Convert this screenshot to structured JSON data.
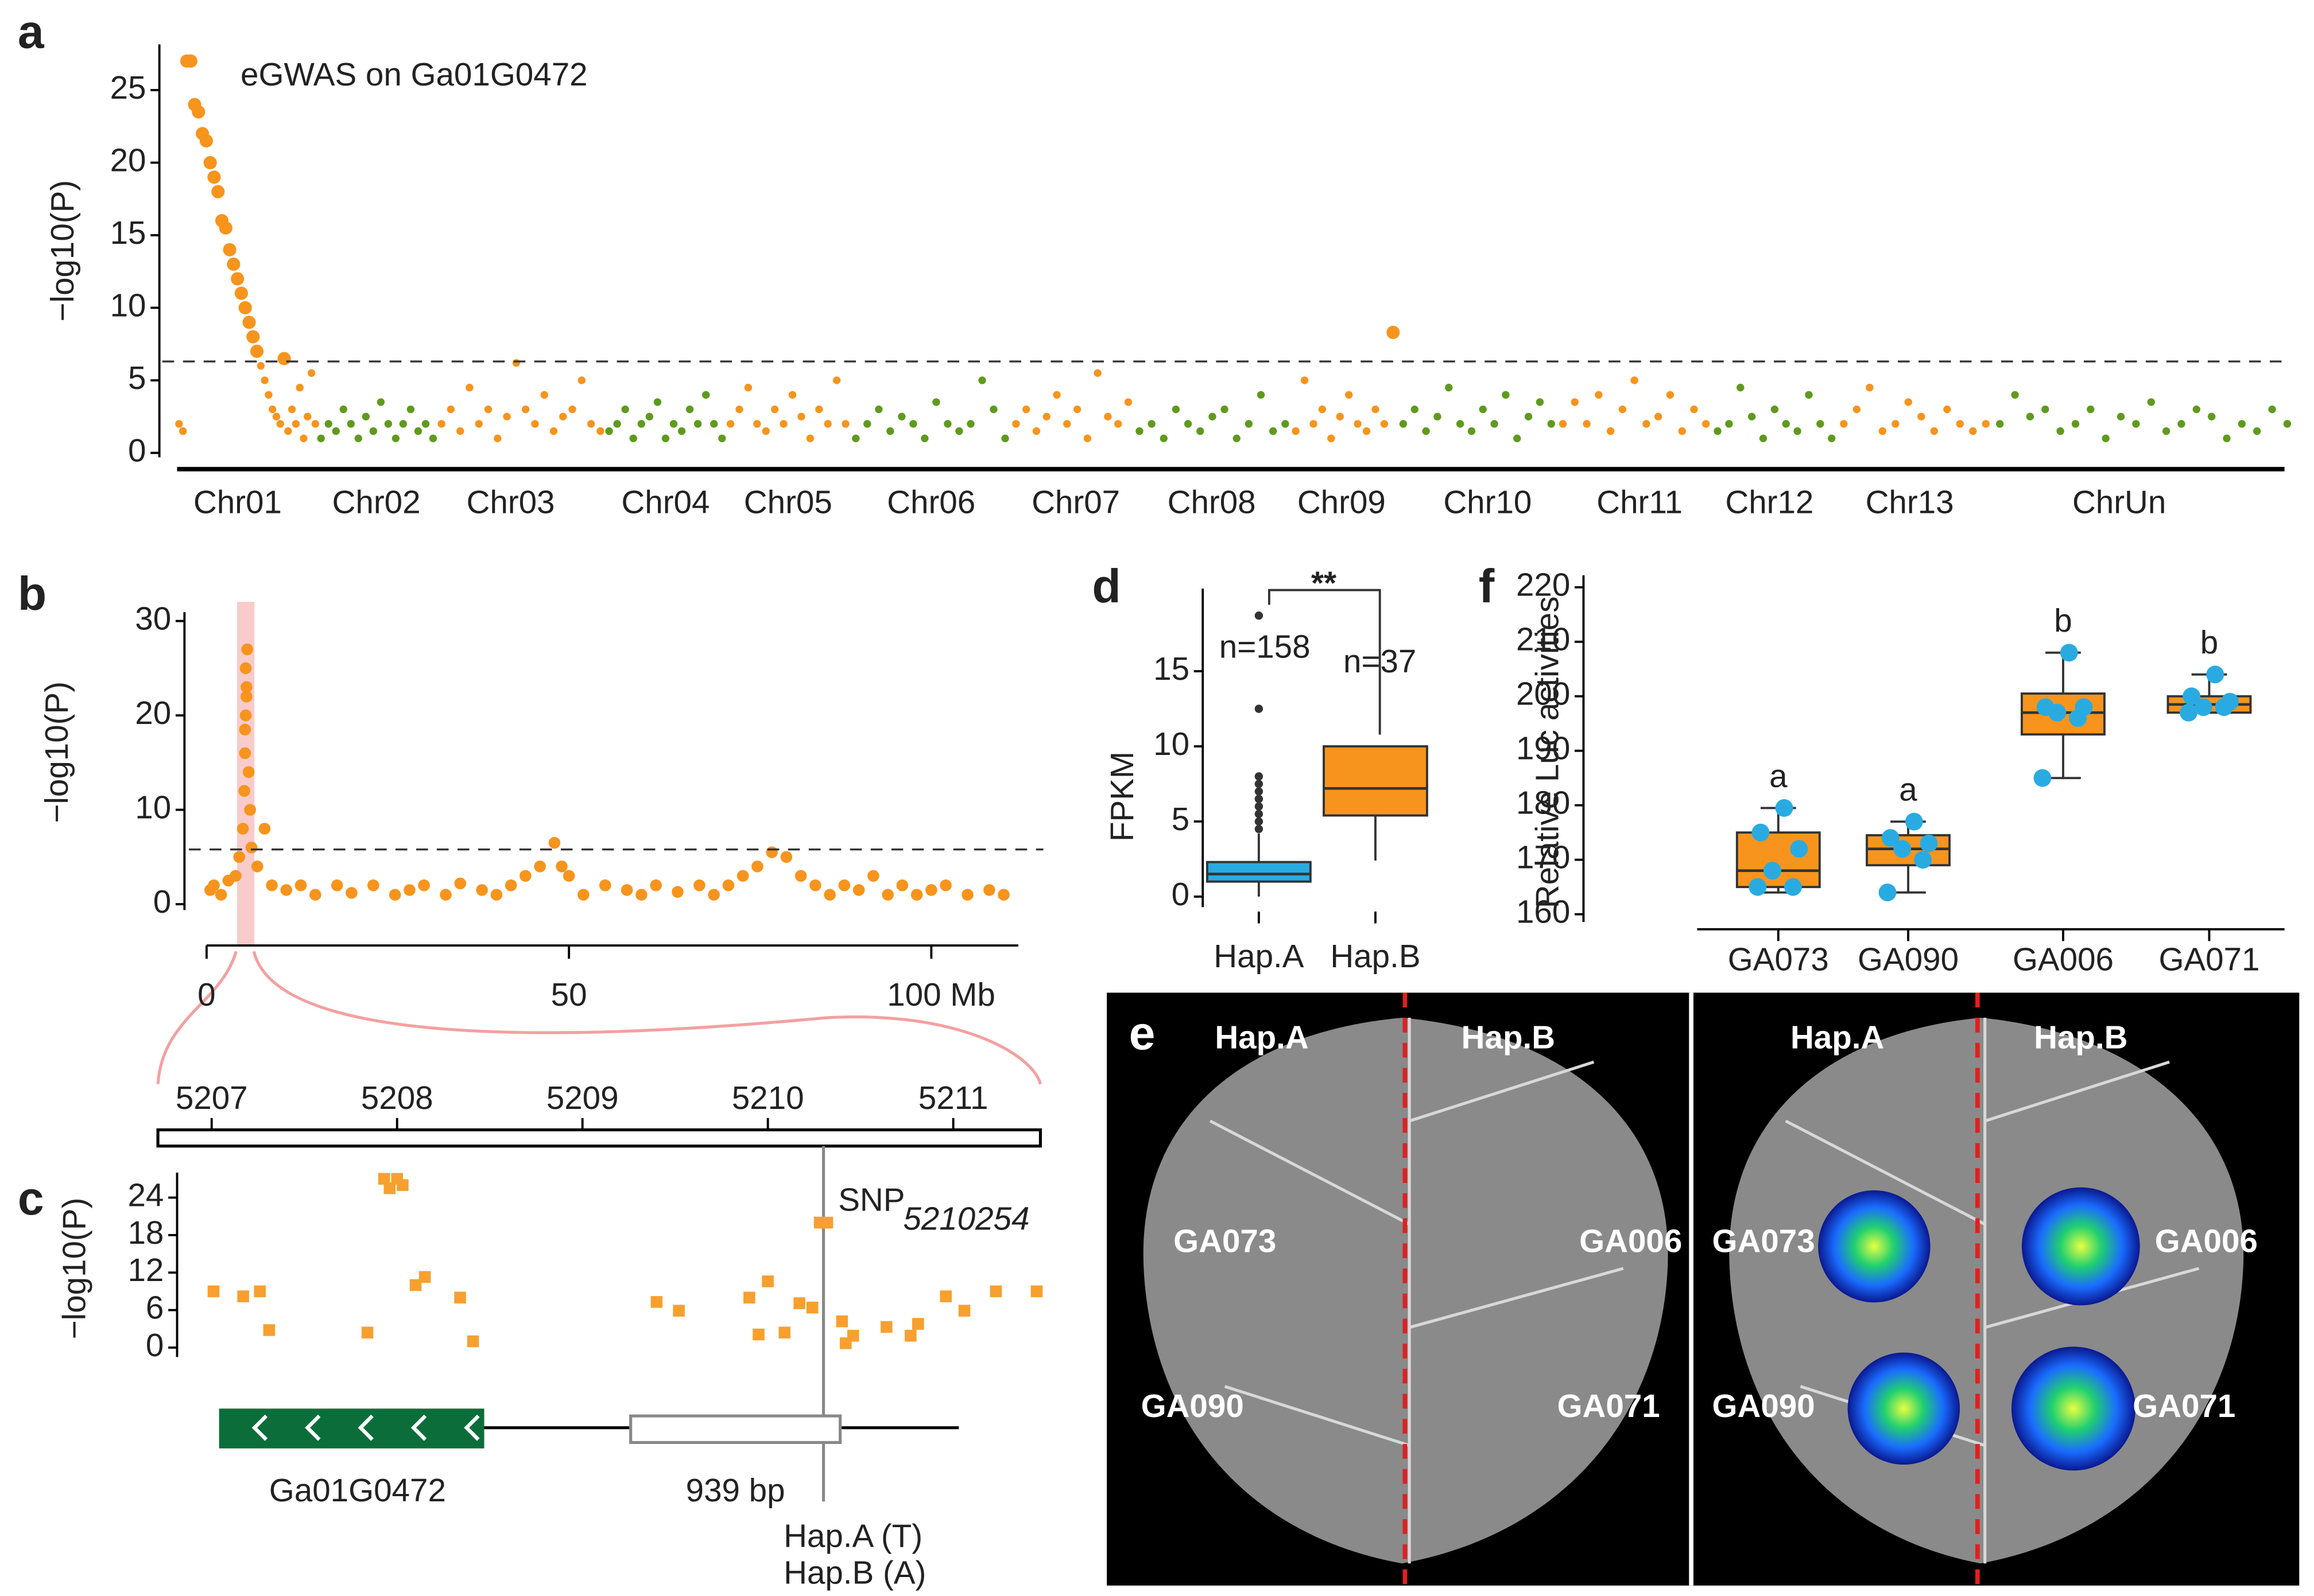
{
  "chart_data": [
    {
      "type": "manhattan",
      "panel_label": "a",
      "title": "eGWAS on Ga01G0472",
      "ylabel": "−log10(P)",
      "ylim": [
        0,
        28
      ],
      "yticks": [
        0,
        5,
        10,
        15,
        20,
        25
      ],
      "threshold": 6.3,
      "series": [
        {
          "name": "Chr01",
          "color": "#f7941d",
          "values": [
            2,
            1.5,
            27,
            27,
            24,
            23.5,
            22,
            21.5,
            20,
            19,
            18,
            16,
            15.5,
            14,
            13,
            12,
            11,
            10,
            9,
            8,
            7,
            6,
            5,
            4,
            3,
            2.5,
            2,
            6.5,
            1.5,
            3,
            2,
            4.5,
            1,
            2.5,
            5.5,
            2
          ]
        },
        {
          "name": "Chr02",
          "color": "#5f9a1e",
          "values": [
            1,
            2,
            1.5,
            3,
            2,
            1,
            2.5,
            1.5,
            3.5,
            2,
            1,
            2,
            3,
            1.5,
            2,
            1
          ]
        },
        {
          "name": "Chr03",
          "color": "#f7941d",
          "values": [
            2,
            3,
            1.5,
            4.5,
            2,
            3,
            1,
            2.5,
            6.2,
            3,
            2,
            4,
            1.5,
            2.5,
            3,
            5,
            2,
            1.5
          ]
        },
        {
          "name": "Chr04",
          "color": "#5f9a1e",
          "values": [
            1.5,
            2,
            3,
            1,
            2,
            2.5,
            3.5,
            1,
            2,
            1.5,
            3,
            2,
            4,
            2,
            1
          ]
        },
        {
          "name": "Chr05",
          "color": "#f7941d",
          "values": [
            2,
            3,
            4.5,
            2,
            1.5,
            3,
            2,
            4,
            2.5,
            1,
            3,
            2,
            5,
            2
          ]
        },
        {
          "name": "Chr06",
          "color": "#5f9a1e",
          "values": [
            1,
            2,
            3,
            1.5,
            2.5,
            2,
            1,
            3.5,
            2,
            1.5,
            2,
            5,
            3,
            1
          ]
        },
        {
          "name": "Chr07",
          "color": "#f7941d",
          "values": [
            2,
            3,
            1.5,
            2.5,
            4,
            2,
            3,
            1,
            5.5,
            2.5,
            2,
            3.5
          ]
        },
        {
          "name": "Chr08",
          "color": "#5f9a1e",
          "values": [
            1.5,
            2,
            1,
            3,
            2,
            1.5,
            2.5,
            3,
            1,
            2,
            4,
            1.5,
            2
          ]
        },
        {
          "name": "Chr09",
          "color": "#f7941d",
          "values": [
            1.5,
            5,
            2,
            3,
            1,
            2.5,
            4,
            2,
            1.5,
            3,
            2,
            8.3
          ]
        },
        {
          "name": "Chr10",
          "color": "#5f9a1e",
          "values": [
            2,
            3,
            1.5,
            2.5,
            4.5,
            2,
            1.5,
            3,
            2,
            4,
            1,
            2.5,
            3.5,
            2
          ]
        },
        {
          "name": "Chr11",
          "color": "#f7941d",
          "values": [
            2,
            3.5,
            2,
            4,
            1.5,
            3,
            5,
            2,
            2.5,
            4,
            1.5,
            3,
            2
          ]
        },
        {
          "name": "Chr12",
          "color": "#5f9a1e",
          "values": [
            1.5,
            2,
            4.5,
            2.5,
            1,
            3,
            2,
            1.5,
            4,
            2,
            1
          ]
        },
        {
          "name": "Chr13",
          "color": "#f7941d",
          "values": [
            2,
            3,
            4.5,
            1.5,
            2,
            3.5,
            2.5,
            1.5,
            3,
            2,
            1.5,
            2
          ]
        },
        {
          "name": "ChrUn",
          "color": "#5f9a1e",
          "values": [
            2,
            4,
            2.5,
            3,
            1.5,
            2,
            3,
            1,
            2.5,
            2,
            3.5,
            1.5,
            2,
            3,
            2.5,
            1,
            2,
            1.5,
            3,
            2
          ]
        }
      ]
    },
    {
      "type": "scatter",
      "panel_label": "b",
      "ylabel": "−log10(P)",
      "color": "#f7941d",
      "xlim": [
        0,
        112
      ],
      "xticks": [
        0,
        50,
        {
          "value": 100,
          "label": "100 Mb"
        }
      ],
      "ylim": [
        0,
        30
      ],
      "yticks": [
        0,
        10,
        20,
        30
      ],
      "threshold": 5.8,
      "highlight_range": [
        4.2,
        6.6
      ],
      "x": [
        0.5,
        1,
        2,
        3,
        4,
        4.5,
        5,
        5.2,
        5.3,
        5.4,
        5.5,
        5.6,
        5.8,
        6,
        6.2,
        5.4,
        5.5,
        5.3,
        7,
        8,
        9,
        11,
        13,
        15,
        18,
        20,
        23,
        26,
        28,
        30,
        33,
        35,
        38,
        40,
        42,
        44,
        46,
        48,
        49,
        50,
        52,
        55,
        58,
        60,
        62,
        65,
        68,
        70,
        72,
        74,
        76,
        78,
        80,
        82,
        84,
        86,
        88,
        90,
        92,
        94,
        96,
        98,
        100,
        102,
        105,
        108,
        110
      ],
      "y": [
        1.5,
        2,
        1,
        2.5,
        3,
        5,
        8,
        12,
        16,
        20,
        23,
        27,
        14,
        10,
        6,
        25,
        22,
        18.5,
        4,
        8,
        2,
        1.5,
        2,
        1,
        2,
        1.2,
        2,
        1,
        1.5,
        2,
        1,
        2.2,
        1.5,
        1,
        2,
        3,
        4,
        6.5,
        4,
        3,
        1,
        2,
        1.5,
        1,
        2,
        1.3,
        2,
        1,
        2,
        3,
        4,
        5.5,
        5,
        3,
        2,
        1,
        2,
        1.5,
        3,
        1,
        2,
        1,
        1.5,
        2,
        1,
        1.5,
        1
      ]
    },
    {
      "type": "scatter",
      "panel_label": "c",
      "ylabel": "−log10(P)",
      "color": "#f7a030",
      "xlim": [
        5206.71,
        5211.47
      ],
      "xticks": [
        5207,
        5208,
        5209,
        5210,
        5211
      ],
      "ylim": [
        -1.5,
        28
      ],
      "yticks": [
        0,
        6,
        12,
        18,
        24
      ],
      "x": [
        5207.01,
        5207.17,
        5207.26,
        5207.31,
        5207.84,
        5207.93,
        5208.0,
        5208.03,
        5207.96,
        5208.1,
        5208.15,
        5208.34,
        5208.41,
        5209.4,
        5209.52,
        5209.9,
        5209.95,
        5210.0,
        5210.09,
        5210.17,
        5210.24,
        5210.28,
        5210.32,
        5210.4,
        5210.42,
        5210.46,
        5210.64,
        5210.77,
        5210.81,
        5210.96,
        5211.06,
        5211.23,
        5211.45
      ],
      "y": [
        9,
        8.2,
        9,
        2.8,
        2.4,
        27,
        27,
        26,
        25.5,
        10,
        11.3,
        8,
        1,
        7.3,
        5.9,
        8,
        2.1,
        10.6,
        2.4,
        7.1,
        6.4,
        20,
        20,
        4.2,
        0.7,
        1.9,
        3.3,
        1.9,
        3.8,
        8.2,
        5.9,
        9,
        9
      ],
      "snp": {
        "label": "SNP",
        "subscript": "5210254",
        "x": 5210.3
      },
      "gene": {
        "name": "Ga01G0472",
        "start": 5207.04,
        "end": 5208.47,
        "line_end": 5211.03
      },
      "region": {
        "label": "939 bp",
        "start": 5209.26,
        "end": 5210.39
      },
      "haplotypes": [
        "Hap.A (T)",
        "Hap.B (A)"
      ]
    },
    {
      "type": "box",
      "panel_label": "d",
      "ylabel": "FPKM",
      "ylim": [
        -0.7,
        20.5
      ],
      "yticks": [
        0,
        5,
        10,
        15
      ],
      "categories": [
        "Hap.A",
        "Hap.B"
      ],
      "colors": [
        "#29abe2",
        "#f7941d"
      ],
      "n_labels": [
        "n=158",
        "n=37"
      ],
      "significance": "**",
      "boxes": [
        {
          "min": 0,
          "q1": 1,
          "median": 1.5,
          "q3": 2.3,
          "max": 4.2,
          "outliers": [
            4.5,
            5,
            5.5,
            6,
            6.5,
            7,
            7.5,
            8,
            12.5,
            18.7
          ]
        },
        {
          "min": 2.4,
          "q1": 5.4,
          "median": 7.2,
          "q3": 10,
          "max": 10,
          "outliers": []
        }
      ]
    },
    {
      "type": "box",
      "panel_label": "f",
      "ylabel": "Relative Luc activities",
      "ylim": [
        158.6,
        222.2
      ],
      "yticks": [
        160,
        170,
        180,
        190,
        200,
        210,
        220
      ],
      "categories": [
        "GA073",
        "GA090",
        "GA006",
        "GA071"
      ],
      "color": "#f7941d",
      "point_color": "#29abe2",
      "letters": [
        "a",
        "a",
        "b",
        "b"
      ],
      "boxes": [
        {
          "min": 164,
          "q1": 165,
          "median": 168,
          "q3": 175,
          "max": 179.5,
          "points": [
            165,
            165,
            168,
            172,
            175,
            179.5
          ]
        },
        {
          "min": 164,
          "q1": 169,
          "median": 172,
          "q3": 174.5,
          "max": 177,
          "points": [
            164,
            170,
            172,
            173,
            174,
            177
          ]
        },
        {
          "min": 185,
          "q1": 193,
          "median": 197,
          "q3": 200.5,
          "max": 208,
          "points": [
            185,
            196,
            197,
            198,
            198,
            208
          ]
        },
        {
          "min": 197,
          "q1": 197,
          "median": 198.5,
          "q3": 200,
          "max": 204,
          "points": [
            197,
            198,
            198,
            199,
            200,
            204
          ]
        }
      ]
    }
  ],
  "image_panel": {
    "panel_label": "e",
    "texts": [
      "Hap.A",
      "Hap.B",
      "GA073",
      "GA006",
      "GA090",
      "GA071",
      "Hap.A",
      "Hap.B",
      "GA073",
      "GA006",
      "GA090",
      "GA071"
    ]
  }
}
